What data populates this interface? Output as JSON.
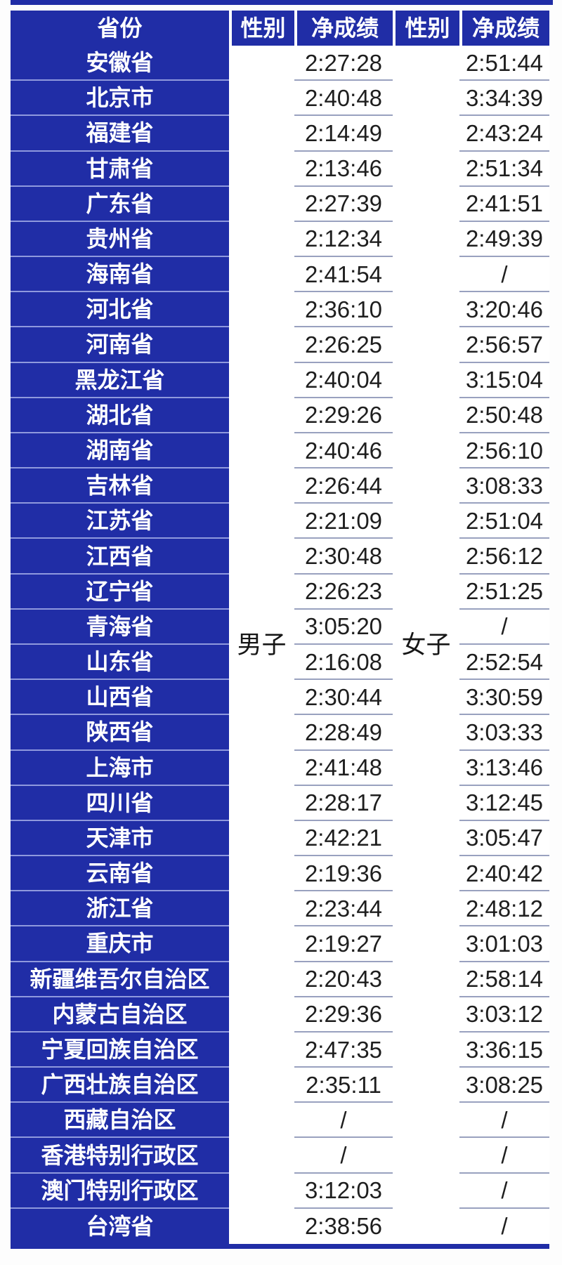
{
  "chart_data": {
    "type": "table",
    "headers": [
      "省份",
      "性别",
      "净成绩",
      "性别",
      "净成绩"
    ],
    "male_group_label": "男子",
    "female_group_label": "女子",
    "missing_value": "/",
    "rows": [
      {
        "province": "安徽省",
        "male": "2:27:28",
        "female": "2:51:44"
      },
      {
        "province": "北京市",
        "male": "2:40:48",
        "female": "3:34:39"
      },
      {
        "province": "福建省",
        "male": "2:14:49",
        "female": "2:43:24"
      },
      {
        "province": "甘肃省",
        "male": "2:13:46",
        "female": "2:51:34"
      },
      {
        "province": "广东省",
        "male": "2:27:39",
        "female": "2:41:51"
      },
      {
        "province": "贵州省",
        "male": "2:12:34",
        "female": "2:49:39"
      },
      {
        "province": "海南省",
        "male": "2:41:54",
        "female": "/"
      },
      {
        "province": "河北省",
        "male": "2:36:10",
        "female": "3:20:46"
      },
      {
        "province": "河南省",
        "male": "2:26:25",
        "female": "2:56:57"
      },
      {
        "province": "黑龙江省",
        "male": "2:40:04",
        "female": "3:15:04"
      },
      {
        "province": "湖北省",
        "male": "2:29:26",
        "female": "2:50:48"
      },
      {
        "province": "湖南省",
        "male": "2:40:46",
        "female": "2:56:10"
      },
      {
        "province": "吉林省",
        "male": "2:26:44",
        "female": "3:08:33"
      },
      {
        "province": "江苏省",
        "male": "2:21:09",
        "female": "2:51:04"
      },
      {
        "province": "江西省",
        "male": "2:30:48",
        "female": "2:56:12"
      },
      {
        "province": "辽宁省",
        "male": "2:26:23",
        "female": "2:51:25"
      },
      {
        "province": "青海省",
        "male": "3:05:20",
        "female": "/"
      },
      {
        "province": "山东省",
        "male": "2:16:08",
        "female": "2:52:54"
      },
      {
        "province": "山西省",
        "male": "2:30:44",
        "female": "3:30:59"
      },
      {
        "province": "陕西省",
        "male": "2:28:49",
        "female": "3:03:33"
      },
      {
        "province": "上海市",
        "male": "2:41:48",
        "female": "3:13:46"
      },
      {
        "province": "四川省",
        "male": "2:28:17",
        "female": "3:12:45"
      },
      {
        "province": "天津市",
        "male": "2:42:21",
        "female": "3:05:47"
      },
      {
        "province": "云南省",
        "male": "2:19:36",
        "female": "2:40:42"
      },
      {
        "province": "浙江省",
        "male": "2:23:44",
        "female": "2:48:12"
      },
      {
        "province": "重庆市",
        "male": "2:19:27",
        "female": "3:01:03"
      },
      {
        "province": "新疆维吾尔自治区",
        "male": "2:20:43",
        "female": "2:58:14"
      },
      {
        "province": "内蒙古自治区",
        "male": "2:29:36",
        "female": "3:03:12"
      },
      {
        "province": "宁夏回族自治区",
        "male": "2:47:35",
        "female": "3:36:15"
      },
      {
        "province": "广西壮族自治区",
        "male": "2:35:11",
        "female": "3:08:25"
      },
      {
        "province": "西藏自治区",
        "male": "/",
        "female": "/"
      },
      {
        "province": "香港特别行政区",
        "male": "/",
        "female": "/"
      },
      {
        "province": "澳门特别行政区",
        "male": "3:12:03",
        "female": "/"
      },
      {
        "province": "台湾省",
        "male": "2:38:56",
        "female": "/"
      }
    ]
  },
  "colors": {
    "table_blue": "#202da6",
    "province_divider": "#8f99dd",
    "time_divider": "#99a1bf",
    "time_text": "#1e1e1e"
  }
}
